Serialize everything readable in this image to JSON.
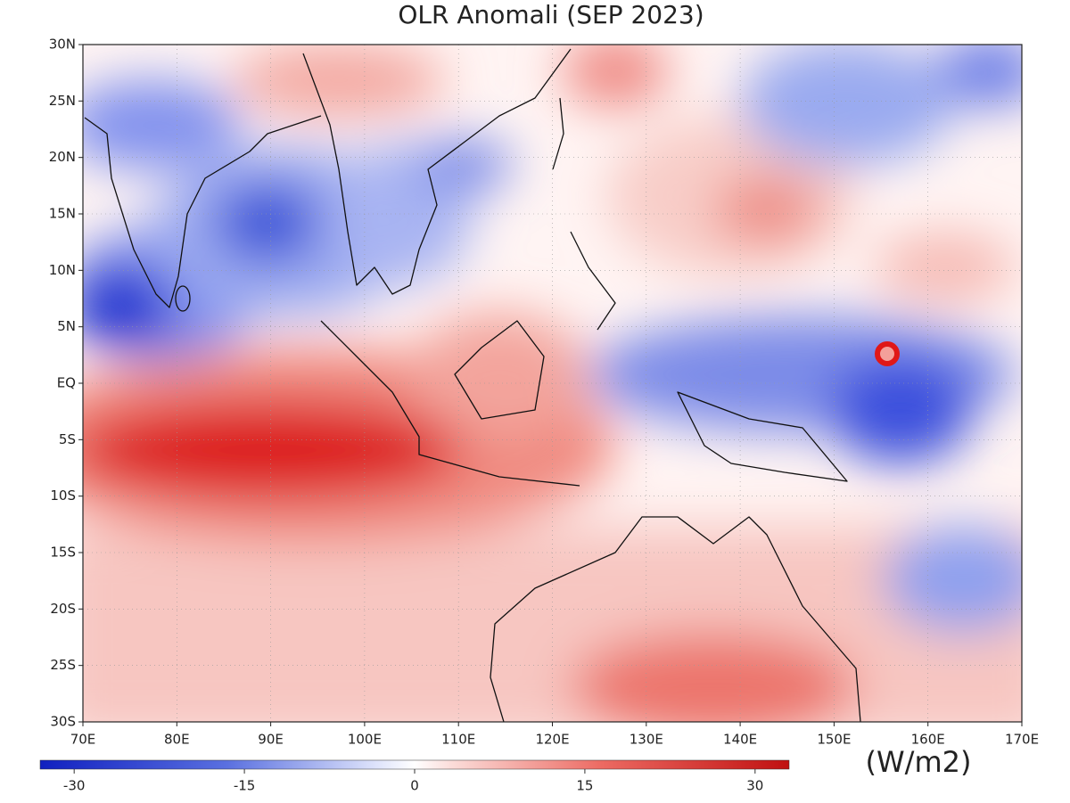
{
  "title": "OLR Anomali (SEP 2023)",
  "lon_axis": {
    "lim": [
      70,
      170
    ],
    "ticks": [
      {
        "value": 70,
        "label": "70E"
      },
      {
        "value": 80,
        "label": "80E"
      },
      {
        "value": 90,
        "label": "90E"
      },
      {
        "value": 100,
        "label": "100E"
      },
      {
        "value": 110,
        "label": "110E"
      },
      {
        "value": 120,
        "label": "120E"
      },
      {
        "value": 130,
        "label": "130E"
      },
      {
        "value": 140,
        "label": "140E"
      },
      {
        "value": 150,
        "label": "150E"
      },
      {
        "value": 160,
        "label": "160E"
      },
      {
        "value": 170,
        "label": "170E"
      }
    ]
  },
  "lat_axis": {
    "lim": [
      -30,
      30
    ],
    "ticks": [
      {
        "value": 30,
        "label": "30N"
      },
      {
        "value": 25,
        "label": "25N"
      },
      {
        "value": 20,
        "label": "20N"
      },
      {
        "value": 15,
        "label": "15N"
      },
      {
        "value": 10,
        "label": "10N"
      },
      {
        "value": 5,
        "label": "5N"
      },
      {
        "value": 0,
        "label": "EQ"
      },
      {
        "value": -5,
        "label": "5S"
      },
      {
        "value": -10,
        "label": "10S"
      },
      {
        "value": -15,
        "label": "15S"
      },
      {
        "value": -20,
        "label": "20S"
      },
      {
        "value": -25,
        "label": "25S"
      },
      {
        "value": -30,
        "label": "30S"
      }
    ]
  },
  "colorbar": {
    "lim": [
      -33,
      33
    ],
    "ticks": [
      -30,
      -15,
      0,
      15,
      30
    ],
    "unit": "(W/m2)"
  }
}
